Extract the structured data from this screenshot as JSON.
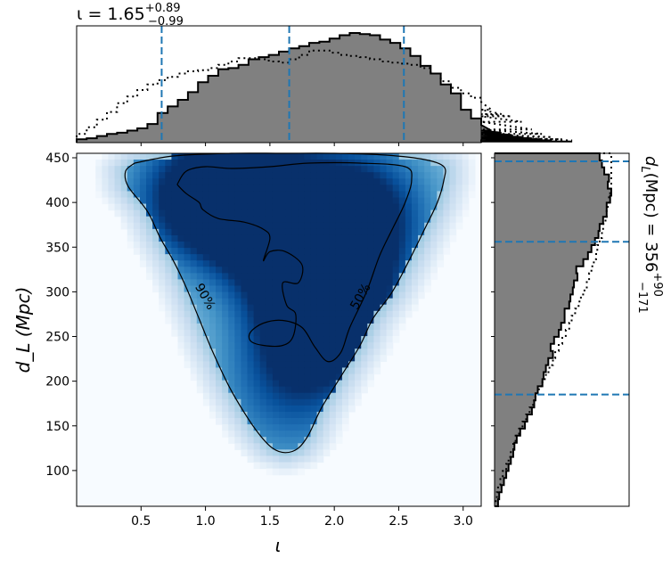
{
  "chart_data": {
    "type": "corner-plot",
    "joint": {
      "type": "heatmap",
      "colormap": "Blues",
      "xlabel": "ι",
      "ylabel": "d_L (Mpc)",
      "xlim": [
        0.0,
        3.14
      ],
      "ylim": [
        60,
        455
      ],
      "xticks": [
        0.5,
        1.0,
        1.5,
        2.0,
        2.5,
        3.0
      ],
      "xtick_labels": [
        "0.5",
        "1.0",
        "1.5",
        "2.0",
        "2.5",
        "3.0"
      ],
      "yticks": [
        100,
        150,
        200,
        250,
        300,
        350,
        400,
        450
      ],
      "ytick_labels": [
        "100",
        "150",
        "200",
        "250",
        "300",
        "350",
        "400",
        "450"
      ],
      "density_peaks": [
        {
          "x": 0.95,
          "y": 405,
          "w": 1.0
        },
        {
          "x": 1.35,
          "y": 415,
          "w": 0.75
        },
        {
          "x": 1.95,
          "y": 310,
          "w": 0.95
        },
        {
          "x": 2.2,
          "y": 395,
          "w": 1.0
        },
        {
          "x": 1.9,
          "y": 250,
          "w": 0.75
        },
        {
          "x": 1.6,
          "y": 360,
          "w": 0.55
        },
        {
          "x": 1.6,
          "y": 200,
          "w": 0.4
        },
        {
          "x": 1.65,
          "y": 140,
          "w": 0.25
        }
      ],
      "contours": [
        {
          "label": "90%",
          "label_pos": {
            "x": 1.0,
            "y": 295
          },
          "label_rotation": 60,
          "points": [
            [
              0.45,
              444
            ],
            [
              0.75,
              452
            ],
            [
              1.2,
              455
            ],
            [
              1.6,
              455
            ],
            [
              2.0,
              455
            ],
            [
              2.4,
              453
            ],
            [
              2.7,
              448
            ],
            [
              2.85,
              440
            ],
            [
              2.85,
              425
            ],
            [
              2.8,
              400
            ],
            [
              2.7,
              370
            ],
            [
              2.58,
              335
            ],
            [
              2.45,
              300
            ],
            [
              2.3,
              270
            ],
            [
              2.2,
              240
            ],
            [
              2.05,
              205
            ],
            [
              1.9,
              170
            ],
            [
              1.8,
              140
            ],
            [
              1.72,
              125
            ],
            [
              1.62,
              120
            ],
            [
              1.52,
              125
            ],
            [
              1.42,
              140
            ],
            [
              1.3,
              165
            ],
            [
              1.18,
              195
            ],
            [
              1.05,
              235
            ],
            [
              0.95,
              270
            ],
            [
              0.85,
              305
            ],
            [
              0.75,
              335
            ],
            [
              0.65,
              360
            ],
            [
              0.55,
              390
            ],
            [
              0.4,
              418
            ],
            [
              0.38,
              435
            ],
            [
              0.45,
              444
            ]
          ]
        },
        {
          "label": "50%",
          "label_pos": {
            "x": 2.2,
            "y": 295
          },
          "label_rotation": -60,
          "points": [
            [
              0.78,
              420
            ],
            [
              0.85,
              435
            ],
            [
              1.0,
              440
            ],
            [
              1.2,
              438
            ],
            [
              1.5,
              440
            ],
            [
              1.8,
              444
            ],
            [
              2.2,
              444
            ],
            [
              2.55,
              440
            ],
            [
              2.6,
              425
            ],
            [
              2.55,
              400
            ],
            [
              2.45,
              370
            ],
            [
              2.35,
              340
            ],
            [
              2.25,
              300
            ],
            [
              2.12,
              260
            ],
            [
              2.05,
              232
            ],
            [
              1.95,
              222
            ],
            [
              1.85,
              238
            ],
            [
              1.75,
              260
            ],
            [
              1.6,
              268
            ],
            [
              1.45,
              265
            ],
            [
              1.35,
              255
            ],
            [
              1.35,
              245
            ],
            [
              1.45,
              240
            ],
            [
              1.6,
              240
            ],
            [
              1.68,
              250
            ],
            [
              1.7,
              275
            ],
            [
              1.63,
              285
            ],
            [
              1.6,
              310
            ],
            [
              1.72,
              310
            ],
            [
              1.75,
              330
            ],
            [
              1.62,
              345
            ],
            [
              1.5,
              345
            ],
            [
              1.45,
              335
            ],
            [
              1.5,
              360
            ],
            [
              1.45,
              370
            ],
            [
              1.3,
              378
            ],
            [
              1.1,
              382
            ],
            [
              0.98,
              392
            ],
            [
              0.95,
              400
            ],
            [
              0.85,
              410
            ],
            [
              0.78,
              420
            ]
          ]
        }
      ]
    },
    "marginal_x": {
      "type": "histogram",
      "title": "ι = 1.65",
      "title_main": "ι = 1.65",
      "title_sup": "+0.89",
      "title_sub": "−0.99",
      "median": 1.65,
      "quantile_lines": [
        0.66,
        1.65,
        2.54
      ],
      "bin_edges_start": 0.0,
      "bin_width": 0.0785,
      "counts": [
        3,
        4,
        6,
        8,
        9,
        11,
        13,
        17,
        27,
        33,
        39,
        46,
        55,
        61,
        67,
        68,
        71,
        76,
        78,
        80,
        83,
        86,
        88,
        91,
        92,
        95,
        98,
        100,
        99,
        98,
        94,
        91,
        86,
        79,
        70,
        63,
        53,
        45,
        30,
        22,
        16,
        11,
        9,
        7,
        5,
        4,
        3,
        2,
        1,
        1
      ],
      "prior_counts": [
        8,
        14,
        21,
        28,
        36,
        42,
        48,
        53,
        57,
        60,
        63,
        65,
        66,
        68,
        71,
        74,
        77,
        77,
        76,
        74,
        73,
        76,
        80,
        84,
        84,
        82,
        80,
        79,
        78,
        76,
        74,
        73,
        72,
        71,
        68,
        63,
        56,
        50,
        45,
        41,
        37,
        30,
        26,
        24,
        19,
        12,
        8,
        5,
        3,
        2
      ]
    },
    "marginal_y": {
      "type": "histogram",
      "orientation": "horizontal",
      "title": "d_L (Mpc) = 356",
      "title_main": "(Mpc) = 356",
      "title_sup": "+90",
      "title_sub": "−171",
      "median": 356,
      "quantile_lines": [
        185,
        356,
        446
      ],
      "bin_edges_start": 60,
      "bin_width": 7.9,
      "counts": [
        3,
        4,
        6,
        8,
        10,
        12,
        14,
        16,
        17,
        19,
        22,
        26,
        28,
        32,
        34,
        35,
        37,
        41,
        42,
        44,
        46,
        50,
        48,
        51,
        55,
        57,
        60,
        60,
        64,
        65,
        67,
        68,
        71,
        70,
        76,
        80,
        83,
        86,
        89,
        90,
        93,
        96,
        96,
        99,
        100,
        97,
        98,
        94,
        92,
        90
      ],
      "prior_counts": [
        1,
        2,
        3,
        5,
        7,
        10,
        12,
        14,
        16,
        18,
        21,
        24,
        27,
        30,
        33,
        35,
        38,
        41,
        44,
        47,
        50,
        52,
        55,
        58,
        61,
        64,
        66,
        69,
        72,
        74,
        77,
        79,
        81,
        83,
        85,
        87,
        88,
        90,
        92,
        93,
        95,
        96,
        97,
        98,
        99,
        100,
        100,
        100,
        100,
        100
      ]
    },
    "colors": {
      "hist_fill": "#808080",
      "hist_edge": "#000000",
      "quantile_line": "#1f77b4",
      "contour": "#000000"
    }
  }
}
